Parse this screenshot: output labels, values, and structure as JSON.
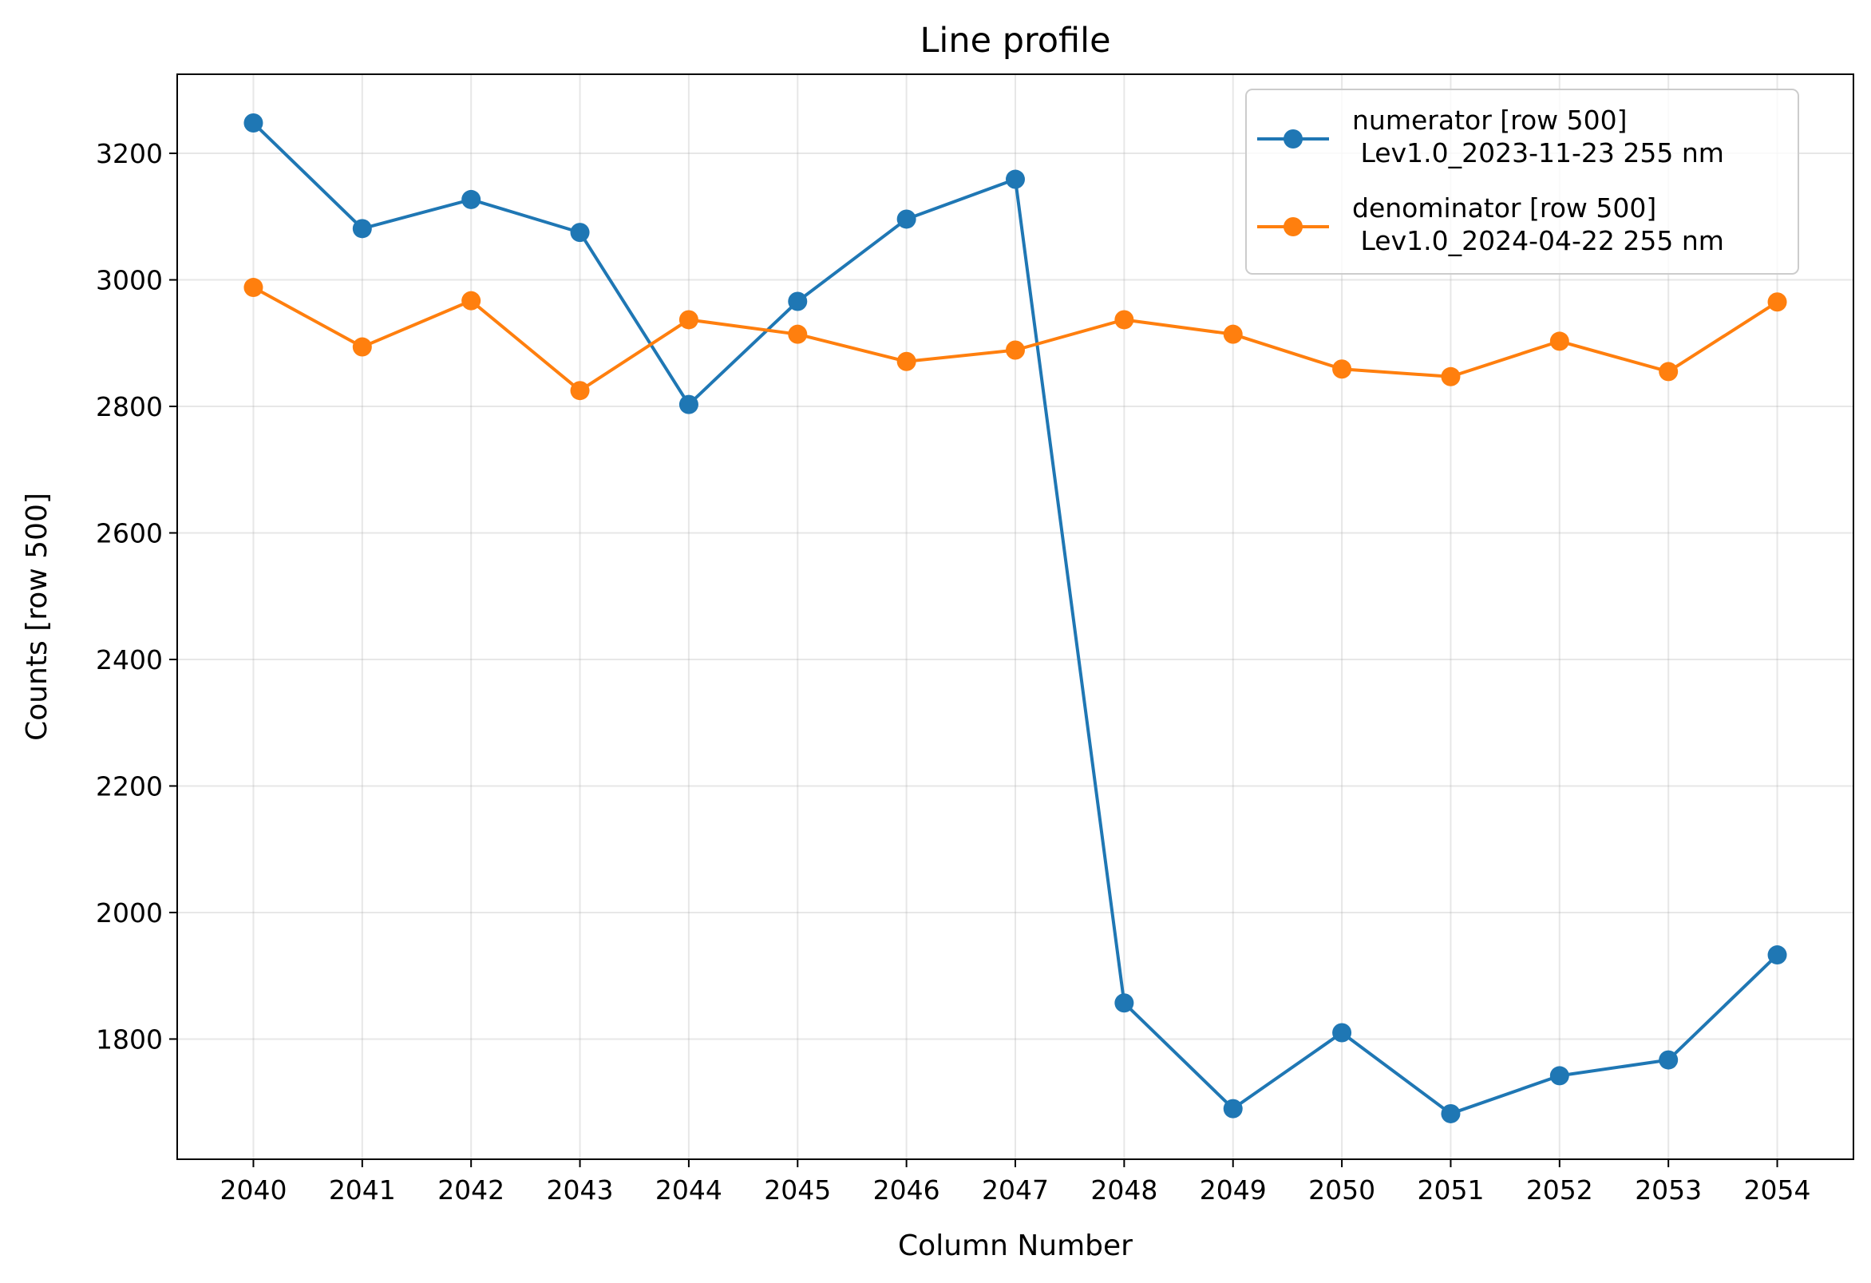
{
  "chart_data": {
    "type": "line",
    "title": "Line profile",
    "xlabel": "Column Number",
    "ylabel": "Counts [row 500]",
    "x": [
      2040,
      2041,
      2042,
      2043,
      2044,
      2045,
      2046,
      2047,
      2048,
      2049,
      2050,
      2051,
      2052,
      2053,
      2054
    ],
    "xlim": [
      2039.3,
      2054.7
    ],
    "ylim": [
      1610,
      3325
    ],
    "xticks": [
      "2040",
      "2041",
      "2042",
      "2043",
      "2044",
      "2045",
      "2046",
      "2047",
      "2048",
      "2049",
      "2050",
      "2051",
      "2052",
      "2053",
      "2054"
    ],
    "yticks": [
      "1800",
      "2000",
      "2200",
      "2400",
      "2600",
      "2800",
      "3000",
      "3200"
    ],
    "grid": true,
    "legend_position": "top-right",
    "series": [
      {
        "name": "numerator [row 500]\n Lev1.0_2023-11-23 255 nm",
        "legend_lines": [
          "numerator [row 500]",
          " Lev1.0_2023-11-23 255 nm"
        ],
        "color": "#1f77b4",
        "values": [
          3248,
          3081,
          3127,
          3075,
          2803,
          2966,
          3096,
          3159,
          1857,
          1690,
          1810,
          1682,
          1742,
          1767,
          1933
        ]
      },
      {
        "name": "denominator [row 500]\n Lev1.0_2024-04-22 255 nm",
        "legend_lines": [
          "denominator [row 500]",
          " Lev1.0_2024-04-22 255 nm"
        ],
        "color": "#ff7f0e",
        "values": [
          2988,
          2894,
          2967,
          2825,
          2937,
          2914,
          2871,
          2889,
          2937,
          2914,
          2859,
          2847,
          2903,
          2855,
          2965
        ]
      }
    ]
  }
}
